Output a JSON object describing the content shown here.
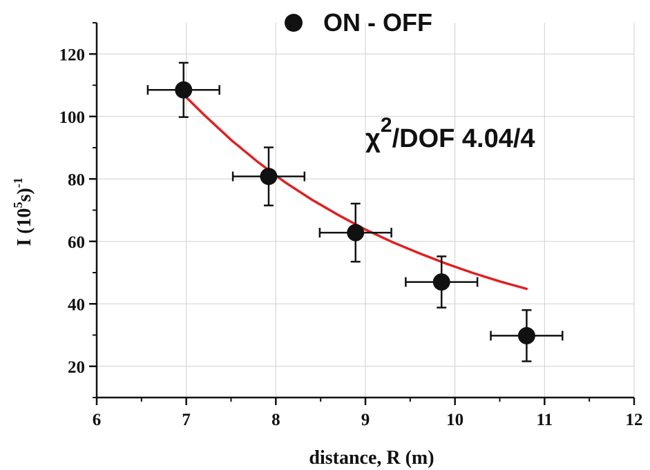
{
  "chart_data": {
    "type": "scatter",
    "xlabel": "distance, R (m)",
    "ylabel": "I (10^5s)^-1",
    "ylabel_parts": {
      "prefix": "I (10",
      "sup1": "5",
      "middle": "s)",
      "sup2": "-1"
    },
    "xlim": [
      6,
      12
    ],
    "ylim": [
      10,
      130
    ],
    "x_ticks": [
      6,
      7,
      8,
      9,
      10,
      11,
      12
    ],
    "y_ticks": [
      20,
      40,
      60,
      80,
      100,
      120
    ],
    "grid": true,
    "legend_position": "top",
    "series": [
      {
        "name": "ON - OFF",
        "color": "#111111",
        "marker": "circle",
        "points": [
          {
            "x": 6.97,
            "y": 108.5,
            "xerr": 0.4,
            "yerr": 8.7
          },
          {
            "x": 7.92,
            "y": 80.8,
            "xerr": 0.4,
            "yerr": 9.3
          },
          {
            "x": 8.89,
            "y": 62.8,
            "xerr": 0.4,
            "yerr": 9.3
          },
          {
            "x": 9.85,
            "y": 47.0,
            "xerr": 0.4,
            "yerr": 8.2
          },
          {
            "x": 10.8,
            "y": 29.8,
            "xerr": 0.4,
            "yerr": 8.2
          }
        ]
      }
    ],
    "fit": {
      "color": "#e02020",
      "x": [
        6.97,
        7.2,
        7.5,
        7.8,
        8.1,
        8.4,
        8.7,
        9.0,
        9.3,
        9.6,
        9.9,
        10.2,
        10.5,
        10.8
      ],
      "y": [
        107,
        100.5,
        92.5,
        85.4,
        79.0,
        73.4,
        68.4,
        63.8,
        59.8,
        56.2,
        52.9,
        49.9,
        47.2,
        44.8
      ]
    },
    "annotation": {
      "chi_symbol": "χ",
      "chi_exp": "2",
      "text": "/DOF 4.04/4"
    }
  }
}
